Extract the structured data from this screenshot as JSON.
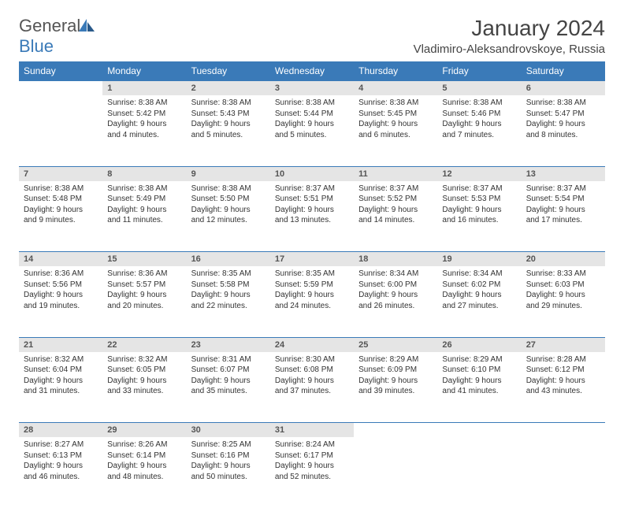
{
  "brand": {
    "part1": "General",
    "part2": "Blue"
  },
  "title": "January 2024",
  "location": "Vladimiro-Aleksandrovskoye, Russia",
  "colors": {
    "header_bg": "#3a7ab8",
    "header_text": "#ffffff",
    "daynum_bg": "#e5e5e5",
    "border": "#3a7ab8",
    "text": "#333333"
  },
  "weekdays": [
    "Sunday",
    "Monday",
    "Tuesday",
    "Wednesday",
    "Thursday",
    "Friday",
    "Saturday"
  ],
  "weeks": [
    [
      null,
      {
        "num": "1",
        "sunrise": "8:38 AM",
        "sunset": "5:42 PM",
        "daylight": "9 hours and 4 minutes."
      },
      {
        "num": "2",
        "sunrise": "8:38 AM",
        "sunset": "5:43 PM",
        "daylight": "9 hours and 5 minutes."
      },
      {
        "num": "3",
        "sunrise": "8:38 AM",
        "sunset": "5:44 PM",
        "daylight": "9 hours and 5 minutes."
      },
      {
        "num": "4",
        "sunrise": "8:38 AM",
        "sunset": "5:45 PM",
        "daylight": "9 hours and 6 minutes."
      },
      {
        "num": "5",
        "sunrise": "8:38 AM",
        "sunset": "5:46 PM",
        "daylight": "9 hours and 7 minutes."
      },
      {
        "num": "6",
        "sunrise": "8:38 AM",
        "sunset": "5:47 PM",
        "daylight": "9 hours and 8 minutes."
      }
    ],
    [
      {
        "num": "7",
        "sunrise": "8:38 AM",
        "sunset": "5:48 PM",
        "daylight": "9 hours and 9 minutes."
      },
      {
        "num": "8",
        "sunrise": "8:38 AM",
        "sunset": "5:49 PM",
        "daylight": "9 hours and 11 minutes."
      },
      {
        "num": "9",
        "sunrise": "8:38 AM",
        "sunset": "5:50 PM",
        "daylight": "9 hours and 12 minutes."
      },
      {
        "num": "10",
        "sunrise": "8:37 AM",
        "sunset": "5:51 PM",
        "daylight": "9 hours and 13 minutes."
      },
      {
        "num": "11",
        "sunrise": "8:37 AM",
        "sunset": "5:52 PM",
        "daylight": "9 hours and 14 minutes."
      },
      {
        "num": "12",
        "sunrise": "8:37 AM",
        "sunset": "5:53 PM",
        "daylight": "9 hours and 16 minutes."
      },
      {
        "num": "13",
        "sunrise": "8:37 AM",
        "sunset": "5:54 PM",
        "daylight": "9 hours and 17 minutes."
      }
    ],
    [
      {
        "num": "14",
        "sunrise": "8:36 AM",
        "sunset": "5:56 PM",
        "daylight": "9 hours and 19 minutes."
      },
      {
        "num": "15",
        "sunrise": "8:36 AM",
        "sunset": "5:57 PM",
        "daylight": "9 hours and 20 minutes."
      },
      {
        "num": "16",
        "sunrise": "8:35 AM",
        "sunset": "5:58 PM",
        "daylight": "9 hours and 22 minutes."
      },
      {
        "num": "17",
        "sunrise": "8:35 AM",
        "sunset": "5:59 PM",
        "daylight": "9 hours and 24 minutes."
      },
      {
        "num": "18",
        "sunrise": "8:34 AM",
        "sunset": "6:00 PM",
        "daylight": "9 hours and 26 minutes."
      },
      {
        "num": "19",
        "sunrise": "8:34 AM",
        "sunset": "6:02 PM",
        "daylight": "9 hours and 27 minutes."
      },
      {
        "num": "20",
        "sunrise": "8:33 AM",
        "sunset": "6:03 PM",
        "daylight": "9 hours and 29 minutes."
      }
    ],
    [
      {
        "num": "21",
        "sunrise": "8:32 AM",
        "sunset": "6:04 PM",
        "daylight": "9 hours and 31 minutes."
      },
      {
        "num": "22",
        "sunrise": "8:32 AM",
        "sunset": "6:05 PM",
        "daylight": "9 hours and 33 minutes."
      },
      {
        "num": "23",
        "sunrise": "8:31 AM",
        "sunset": "6:07 PM",
        "daylight": "9 hours and 35 minutes."
      },
      {
        "num": "24",
        "sunrise": "8:30 AM",
        "sunset": "6:08 PM",
        "daylight": "9 hours and 37 minutes."
      },
      {
        "num": "25",
        "sunrise": "8:29 AM",
        "sunset": "6:09 PM",
        "daylight": "9 hours and 39 minutes."
      },
      {
        "num": "26",
        "sunrise": "8:29 AM",
        "sunset": "6:10 PM",
        "daylight": "9 hours and 41 minutes."
      },
      {
        "num": "27",
        "sunrise": "8:28 AM",
        "sunset": "6:12 PM",
        "daylight": "9 hours and 43 minutes."
      }
    ],
    [
      {
        "num": "28",
        "sunrise": "8:27 AM",
        "sunset": "6:13 PM",
        "daylight": "9 hours and 46 minutes."
      },
      {
        "num": "29",
        "sunrise": "8:26 AM",
        "sunset": "6:14 PM",
        "daylight": "9 hours and 48 minutes."
      },
      {
        "num": "30",
        "sunrise": "8:25 AM",
        "sunset": "6:16 PM",
        "daylight": "9 hours and 50 minutes."
      },
      {
        "num": "31",
        "sunrise": "8:24 AM",
        "sunset": "6:17 PM",
        "daylight": "9 hours and 52 minutes."
      },
      null,
      null,
      null
    ]
  ]
}
